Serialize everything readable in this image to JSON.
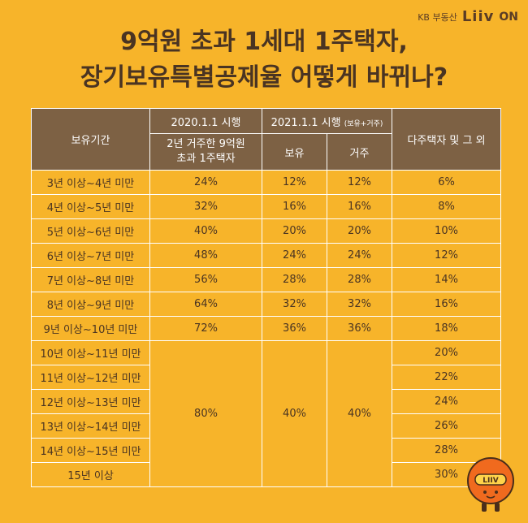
{
  "brand": {
    "kb": "KB 부동산",
    "liiv": "Liiv",
    "on": "ON"
  },
  "title": {
    "line1": "9억원 초과 1세대 1주택자,",
    "line2": "장기보유특별공제율 어떻게 바뀌나?"
  },
  "table": {
    "head": {
      "period": "보유기간",
      "y2020": "2020.1.1 시행",
      "y2020_sub": "2년 거주한 9억원 초과 1주택자",
      "y2021": "2021.1.1 시행",
      "y2021_note": "(보유+거주)",
      "hold": "보유",
      "reside": "거주",
      "multi": "다주택자 및 그 외"
    },
    "rows": [
      {
        "period": "3년 이상~4년 미만",
        "y2020": "24%",
        "hold": "12%",
        "reside": "12%",
        "multi": "6%"
      },
      {
        "period": "4년 이상~5년 미만",
        "y2020": "32%",
        "hold": "16%",
        "reside": "16%",
        "multi": "8%"
      },
      {
        "period": "5년 이상~6년 미만",
        "y2020": "40%",
        "hold": "20%",
        "reside": "20%",
        "multi": "10%"
      },
      {
        "period": "6년 이상~7년 미만",
        "y2020": "48%",
        "hold": "24%",
        "reside": "24%",
        "multi": "12%"
      },
      {
        "period": "7년 이상~8년 미만",
        "y2020": "56%",
        "hold": "28%",
        "reside": "28%",
        "multi": "14%"
      },
      {
        "period": "8년 이상~9년 미만",
        "y2020": "64%",
        "hold": "32%",
        "reside": "32%",
        "multi": "16%"
      },
      {
        "period": "9년 이상~10년 미만",
        "y2020": "72%",
        "hold": "36%",
        "reside": "36%",
        "multi": "18%"
      },
      {
        "period": "10년 이상~11년 미만",
        "multi": "20%"
      },
      {
        "period": "11년 이상~12년 미만",
        "multi": "22%"
      },
      {
        "period": "12년 이상~13년 미만",
        "multi": "24%"
      },
      {
        "period": "13년 이상~14년 미만",
        "multi": "26%"
      },
      {
        "period": "14년 이상~15년 미만",
        "multi": "28%"
      },
      {
        "period": "15년 이상",
        "multi": "30%"
      }
    ],
    "merged": {
      "y2020": "80%",
      "hold": "40%",
      "reside": "40%"
    }
  },
  "mascot": {
    "label": "LIIV",
    "color": "#F06A1E"
  }
}
